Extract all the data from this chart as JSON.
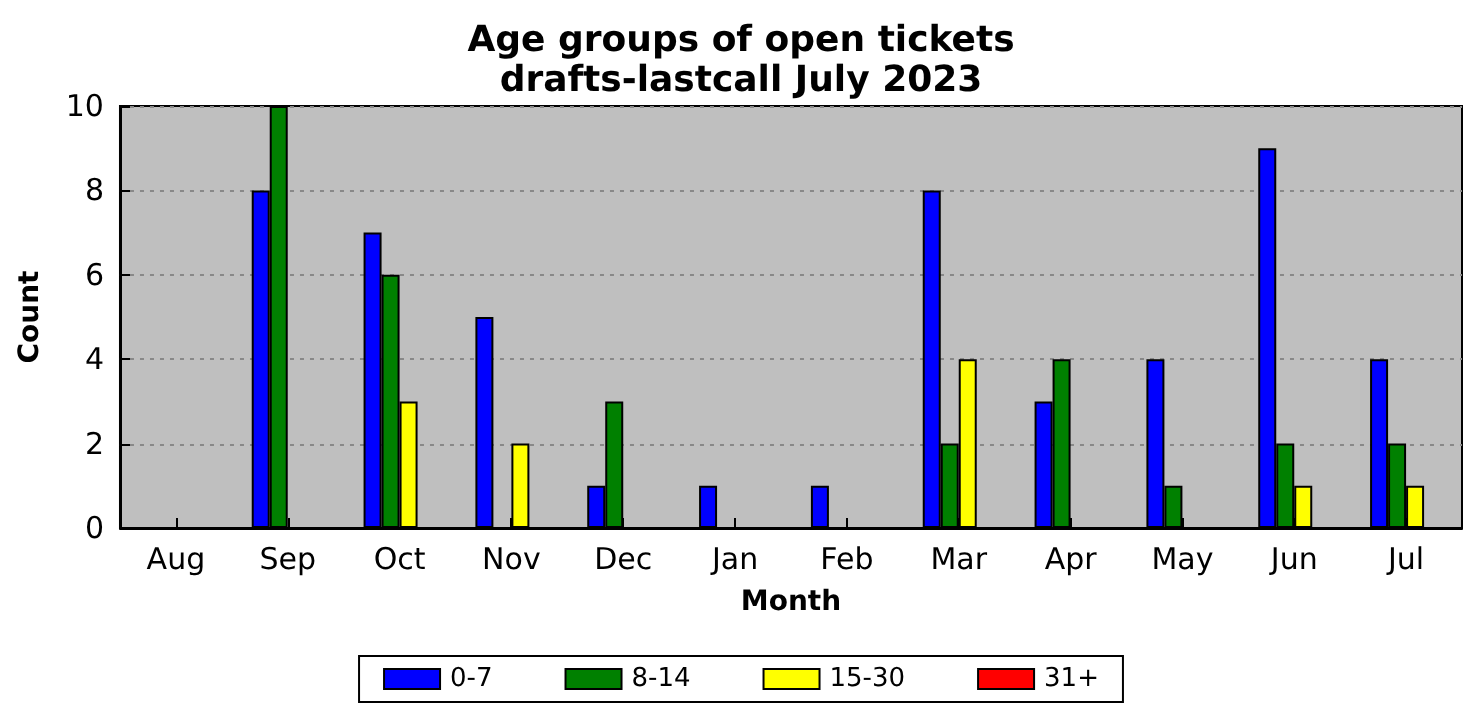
{
  "chart_data": {
    "type": "bar",
    "title": "Age groups of open tickets",
    "subtitle": "drafts-lastcall July 2023",
    "xlabel": "Month",
    "ylabel": "Count",
    "categories": [
      "Aug",
      "Sep",
      "Oct",
      "Nov",
      "Dec",
      "Jan",
      "Feb",
      "Mar",
      "Apr",
      "May",
      "Jun",
      "Jul"
    ],
    "series": [
      {
        "name": "0-7",
        "color": "#0000ff",
        "values": [
          0,
          8,
          7,
          5,
          1,
          1,
          1,
          8,
          3,
          4,
          9,
          4
        ]
      },
      {
        "name": "8-14",
        "color": "#008000",
        "values": [
          0,
          10,
          6,
          0,
          3,
          0,
          0,
          2,
          4,
          1,
          2,
          2
        ]
      },
      {
        "name": "15-30",
        "color": "#ffff00",
        "values": [
          0,
          0,
          3,
          2,
          0,
          0,
          0,
          4,
          0,
          0,
          1,
          1
        ]
      },
      {
        "name": "31+",
        "color": "#ff0000",
        "values": [
          0,
          0,
          0,
          0,
          0,
          0,
          0,
          0,
          0,
          0,
          0,
          0
        ]
      }
    ],
    "ylim": [
      0,
      10
    ],
    "yticks": [
      0,
      2,
      4,
      6,
      8,
      10
    ],
    "grid": "y",
    "legend": "bottom"
  }
}
